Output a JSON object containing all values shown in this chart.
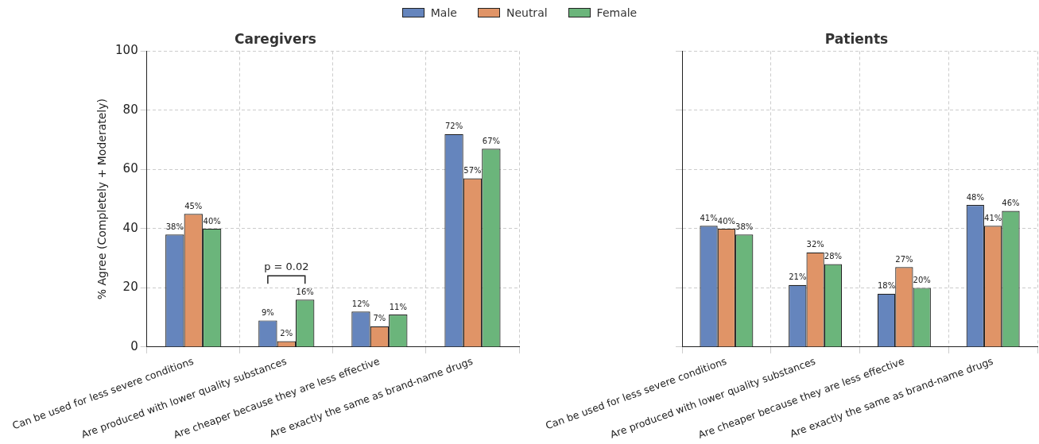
{
  "chart_data": [
    {
      "type": "bar",
      "title": "Caregivers",
      "ylabel": "% Agree (Completely + Moderately)",
      "categories": [
        "Can be used for less severe conditions",
        "Are produced with lower quality substances",
        "Are cheaper because they are less effective",
        "Are exactly the same as brand-name drugs"
      ],
      "series": [
        {
          "name": "Male",
          "color": "#6585bd",
          "values": [
            38,
            9,
            12,
            72
          ],
          "value_labels": [
            "38%",
            "9%",
            "12%",
            "72%"
          ]
        },
        {
          "name": "Neutral",
          "color": "#e09467",
          "values": [
            45,
            2,
            7,
            57
          ],
          "value_labels": [
            "45%",
            "2%",
            "7%",
            "57%"
          ]
        },
        {
          "name": "Female",
          "color": "#6bb57b",
          "values": [
            40,
            16,
            11,
            67
          ],
          "value_labels": [
            "40%",
            "16%",
            "11%",
            "67%"
          ]
        }
      ],
      "ylim": [
        0,
        100
      ],
      "yticks": [
        0,
        20,
        40,
        60,
        80,
        100
      ],
      "grid": true,
      "legend": "top",
      "annotations": [
        "p = 0.02"
      ]
    },
    {
      "type": "bar",
      "title": "Patients",
      "categories": [
        "Can be used for less severe conditions",
        "Are produced with lower quality substances",
        "Are cheaper because they are less effective",
        "Are exactly the same as brand-name drugs"
      ],
      "series": [
        {
          "color": "#6585bd",
          "values": [
            41,
            21,
            18,
            48
          ],
          "value_labels": [
            "41%",
            "21%",
            "18%",
            "48%"
          ]
        },
        {
          "color": "#e09467",
          "values": [
            40,
            32,
            27,
            41
          ],
          "value_labels": [
            "40%",
            "32%",
            "27%",
            "41%"
          ]
        },
        {
          "color": "#6bb57b",
          "values": [
            38,
            28,
            20,
            46
          ],
          "value_labels": [
            "38%",
            "28%",
            "20%",
            "46%"
          ]
        }
      ],
      "ylim": [
        0,
        100
      ],
      "yticks": [
        0,
        20,
        40,
        60,
        80,
        100
      ],
      "grid": true,
      "tick_labels": "x"
    }
  ]
}
